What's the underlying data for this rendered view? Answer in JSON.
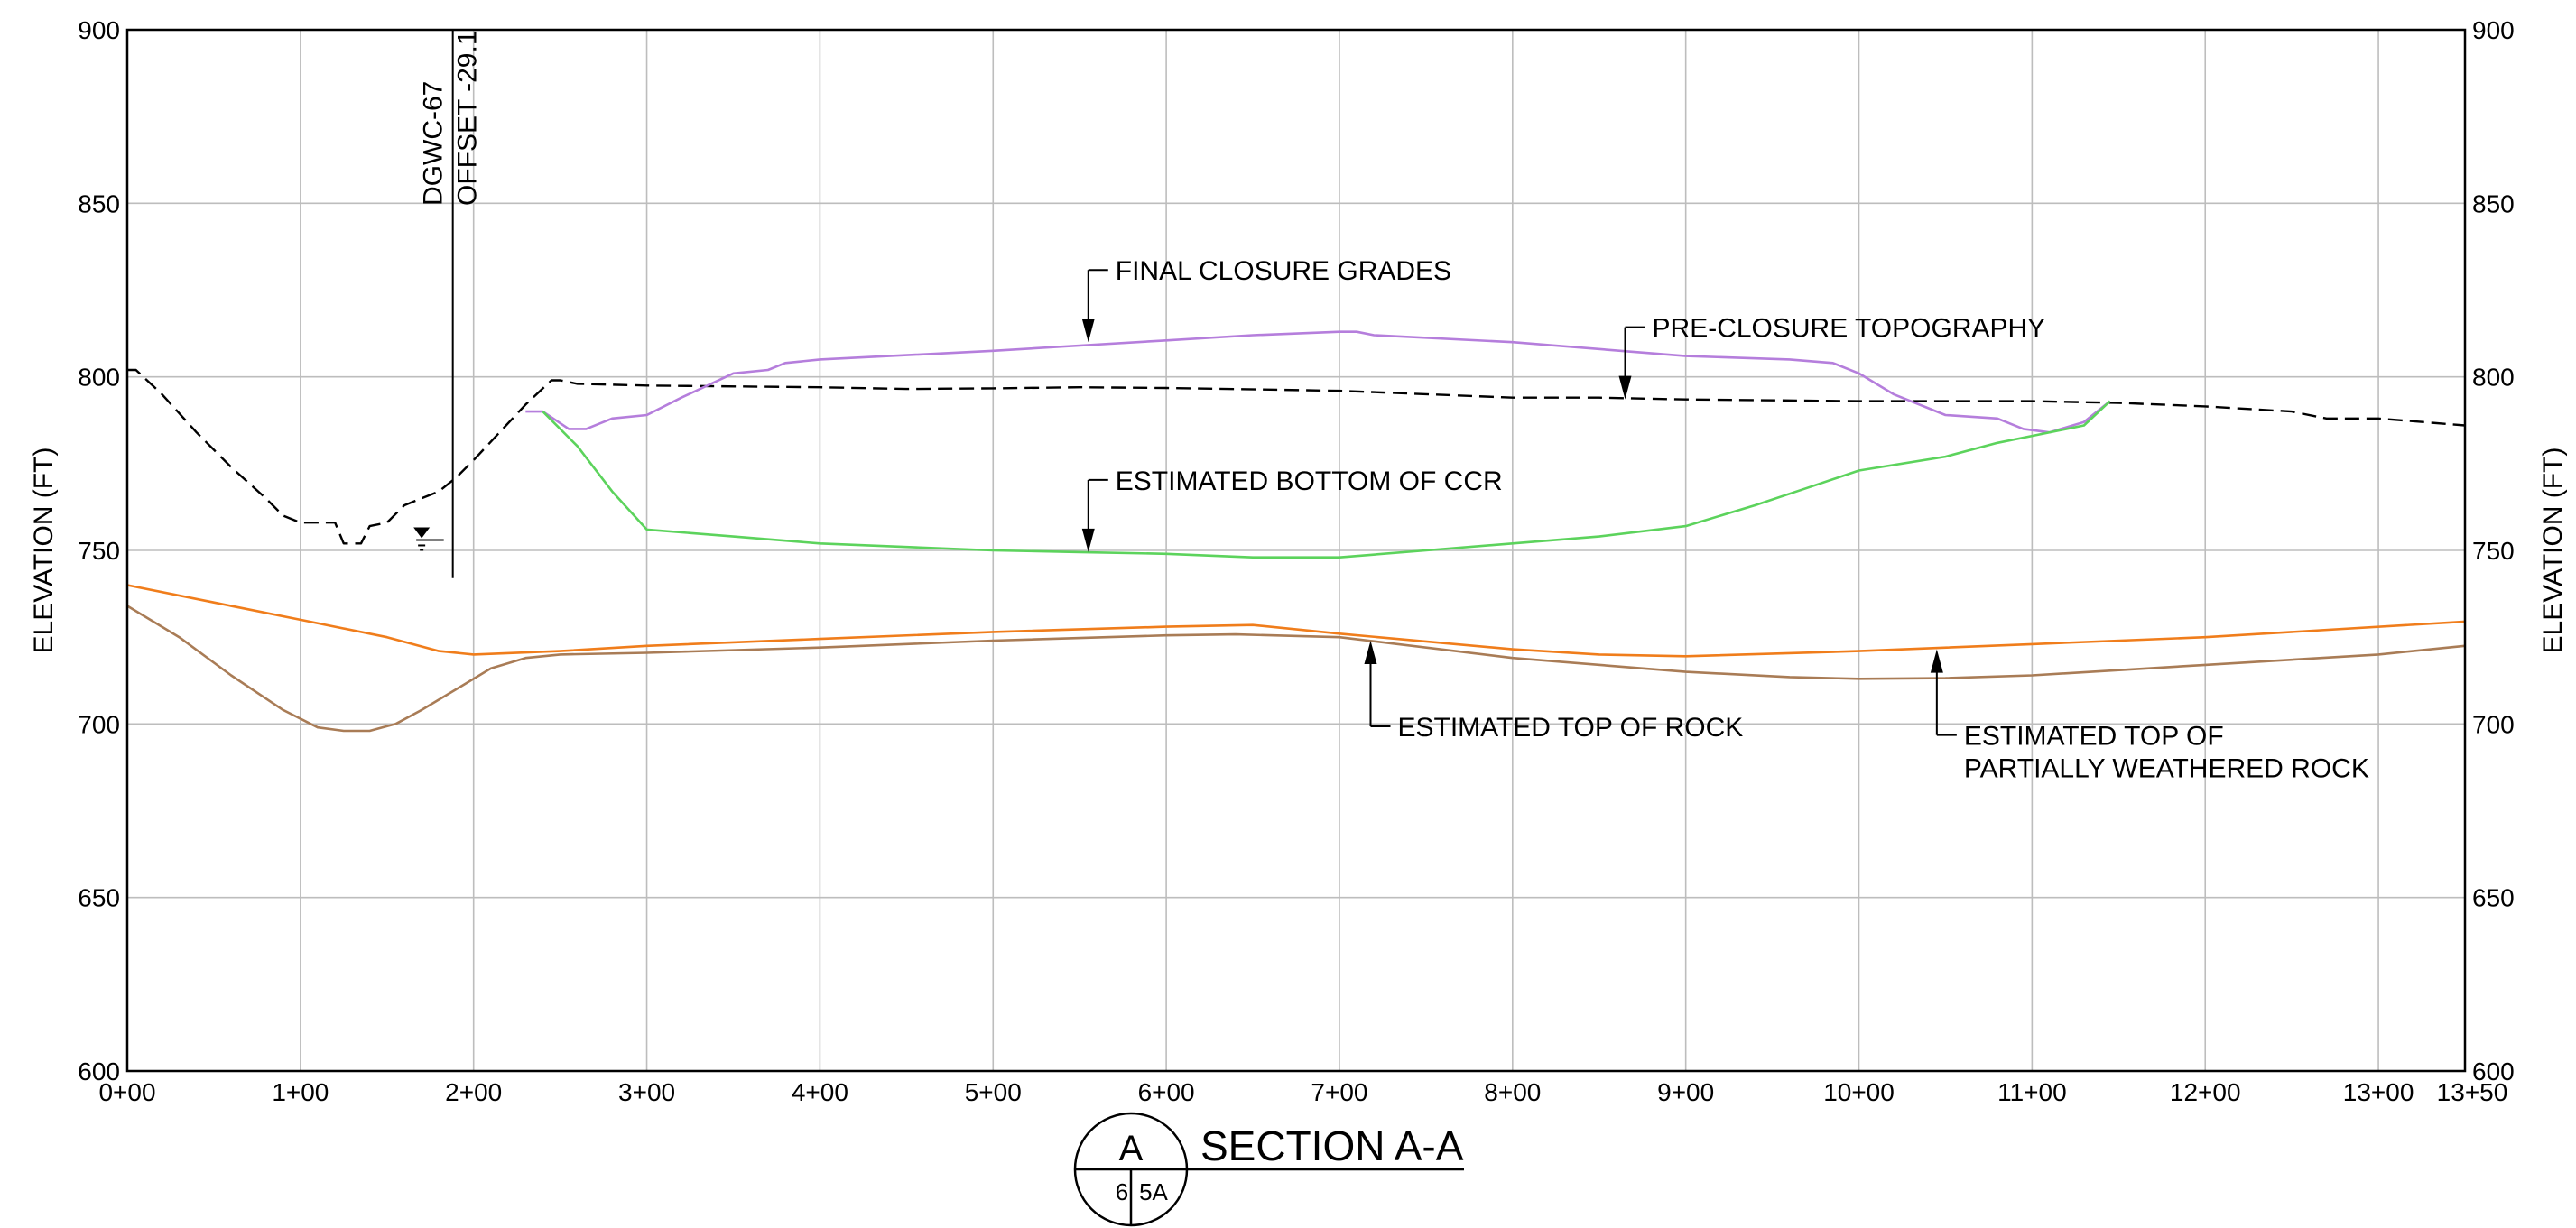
{
  "chart_data": {
    "type": "line",
    "ylabel_left": "ELEVATION (FT)",
    "ylabel_right": "ELEVATION (FT)",
    "xlim": [
      0,
      1350
    ],
    "ylim": [
      600,
      900
    ],
    "x_ticks": [
      {
        "v": 0,
        "label": "0+00"
      },
      {
        "v": 100,
        "label": "1+00"
      },
      {
        "v": 200,
        "label": "2+00"
      },
      {
        "v": 300,
        "label": "3+00"
      },
      {
        "v": 400,
        "label": "4+00"
      },
      {
        "v": 500,
        "label": "5+00"
      },
      {
        "v": 600,
        "label": "6+00"
      },
      {
        "v": 700,
        "label": "7+00"
      },
      {
        "v": 800,
        "label": "8+00"
      },
      {
        "v": 900,
        "label": "9+00"
      },
      {
        "v": 1000,
        "label": "10+00"
      },
      {
        "v": 1100,
        "label": "11+00"
      },
      {
        "v": 1200,
        "label": "12+00"
      },
      {
        "v": 1300,
        "label": "13+00"
      },
      {
        "v": 1350,
        "label": "13+50"
      }
    ],
    "y_ticks": [
      {
        "v": 600,
        "label": "600"
      },
      {
        "v": 650,
        "label": "650"
      },
      {
        "v": 700,
        "label": "700"
      },
      {
        "v": 750,
        "label": "750"
      },
      {
        "v": 800,
        "label": "800"
      },
      {
        "v": 850,
        "label": "850"
      },
      {
        "v": 900,
        "label": "900"
      }
    ],
    "grid": true,
    "series": [
      {
        "name": "PRE-CLOSURE TOPOGRAPHY",
        "color": "#000000",
        "dashed": true,
        "points": [
          [
            0,
            802
          ],
          [
            5,
            802
          ],
          [
            20,
            795
          ],
          [
            40,
            784
          ],
          [
            60,
            774
          ],
          [
            80,
            765
          ],
          [
            90,
            760
          ],
          [
            100,
            758
          ],
          [
            120,
            758
          ],
          [
            125,
            752
          ],
          [
            135,
            752
          ],
          [
            140,
            757
          ],
          [
            150,
            758
          ],
          [
            160,
            763
          ],
          [
            170,
            765
          ],
          [
            180,
            767
          ],
          [
            190,
            771
          ],
          [
            200,
            776
          ],
          [
            215,
            784
          ],
          [
            230,
            792
          ],
          [
            245,
            799
          ],
          [
            250,
            799
          ],
          [
            260,
            798
          ],
          [
            300,
            797.5
          ],
          [
            400,
            797
          ],
          [
            450,
            796.5
          ],
          [
            500,
            796.7
          ],
          [
            550,
            797
          ],
          [
            600,
            796.8
          ],
          [
            700,
            796
          ],
          [
            800,
            794
          ],
          [
            850,
            794
          ],
          [
            900,
            793.5
          ],
          [
            1000,
            793
          ],
          [
            1100,
            793
          ],
          [
            1150,
            792.5
          ],
          [
            1200,
            791.5
          ],
          [
            1250,
            790
          ],
          [
            1270,
            788
          ],
          [
            1300,
            788
          ],
          [
            1350,
            786
          ]
        ]
      },
      {
        "name": "FINAL CLOSURE GRADES",
        "color": "#b57edc",
        "dashed": false,
        "points": [
          [
            230,
            790
          ],
          [
            240,
            790
          ],
          [
            255,
            785
          ],
          [
            265,
            785
          ],
          [
            280,
            788
          ],
          [
            300,
            789
          ],
          [
            320,
            794
          ],
          [
            350,
            801
          ],
          [
            370,
            802
          ],
          [
            380,
            804
          ],
          [
            400,
            805
          ],
          [
            500,
            807.5
          ],
          [
            550,
            809
          ],
          [
            600,
            810.5
          ],
          [
            650,
            812
          ],
          [
            700,
            813
          ],
          [
            710,
            813
          ],
          [
            720,
            812
          ],
          [
            800,
            810
          ],
          [
            900,
            806
          ],
          [
            960,
            805
          ],
          [
            985,
            804
          ],
          [
            1000,
            801
          ],
          [
            1020,
            795
          ],
          [
            1050,
            789
          ],
          [
            1080,
            788
          ],
          [
            1095,
            785
          ],
          [
            1110,
            784
          ],
          [
            1130,
            787
          ],
          [
            1145,
            793
          ]
        ]
      },
      {
        "name": "ESTIMATED BOTTOM OF CCR",
        "color": "#5cd35c",
        "dashed": false,
        "points": [
          [
            240,
            790
          ],
          [
            260,
            780
          ],
          [
            280,
            767
          ],
          [
            300,
            756
          ],
          [
            350,
            754
          ],
          [
            400,
            752
          ],
          [
            500,
            750
          ],
          [
            550,
            749.5
          ],
          [
            600,
            749
          ],
          [
            650,
            748
          ],
          [
            700,
            748
          ],
          [
            750,
            750
          ],
          [
            800,
            752
          ],
          [
            850,
            754
          ],
          [
            900,
            757
          ],
          [
            940,
            763
          ],
          [
            970,
            768
          ],
          [
            1000,
            773
          ],
          [
            1050,
            777
          ],
          [
            1080,
            781
          ],
          [
            1100,
            783
          ],
          [
            1130,
            786
          ],
          [
            1145,
            793
          ]
        ]
      },
      {
        "name": "ESTIMATED TOP OF ROCK",
        "color": "#f07d1b",
        "dashed": false,
        "points": [
          [
            0,
            740
          ],
          [
            50,
            735
          ],
          [
            100,
            730
          ],
          [
            150,
            725
          ],
          [
            180,
            721
          ],
          [
            200,
            720
          ],
          [
            250,
            721
          ],
          [
            300,
            722.5
          ],
          [
            400,
            724.5
          ],
          [
            500,
            726.5
          ],
          [
            600,
            728
          ],
          [
            650,
            728.5
          ],
          [
            700,
            726
          ],
          [
            800,
            721.5
          ],
          [
            850,
            720
          ],
          [
            900,
            719.5
          ],
          [
            1000,
            721
          ],
          [
            1100,
            723
          ],
          [
            1200,
            725
          ],
          [
            1350,
            729.5
          ]
        ]
      },
      {
        "name": "ESTIMATED TOP OF PARTIALLY WEATHERED ROCK",
        "color": "#a97c56",
        "dashed": false,
        "points": [
          [
            0,
            734
          ],
          [
            30,
            725
          ],
          [
            60,
            714
          ],
          [
            90,
            704
          ],
          [
            110,
            699
          ],
          [
            125,
            698
          ],
          [
            140,
            698
          ],
          [
            155,
            700
          ],
          [
            170,
            704
          ],
          [
            190,
            710
          ],
          [
            210,
            716
          ],
          [
            230,
            719
          ],
          [
            250,
            720
          ],
          [
            300,
            720.5
          ],
          [
            400,
            722
          ],
          [
            500,
            724
          ],
          [
            600,
            725.5
          ],
          [
            640,
            725.8
          ],
          [
            700,
            725
          ],
          [
            800,
            719
          ],
          [
            900,
            715
          ],
          [
            960,
            713.5
          ],
          [
            1000,
            713
          ],
          [
            1050,
            713.2
          ],
          [
            1100,
            714
          ],
          [
            1200,
            717
          ],
          [
            1300,
            720
          ],
          [
            1350,
            722.5
          ]
        ]
      }
    ],
    "annotations": [
      {
        "text": "FINAL CLOSURE GRADES",
        "arrow_x": 555,
        "arrow_y": 810,
        "arrow_dir": "down"
      },
      {
        "text": "PRE-CLOSURE TOPOGRAPHY",
        "arrow_x": 865,
        "arrow_y": 793.5,
        "arrow_dir": "down"
      },
      {
        "text": "ESTIMATED BOTTOM OF CCR",
        "arrow_x": 555,
        "arrow_y": 749.5,
        "arrow_dir": "down"
      },
      {
        "text": "ESTIMATED TOP OF ROCK",
        "arrow_x": 718,
        "arrow_y": 724,
        "arrow_dir": "up"
      },
      {
        "text": [
          "ESTIMATED TOP OF",
          "PARTIALLY WEATHERED ROCK"
        ],
        "arrow_x": 1045,
        "arrow_y": 721.5,
        "arrow_dir": "up"
      }
    ],
    "boring": {
      "name": "DGWC-67",
      "offset_label": "OFFSET -29.1",
      "x": 188,
      "bottom": 742,
      "water_level_x": 170,
      "water_level": 753
    }
  },
  "section": {
    "title": "SECTION A-A",
    "letter": "A",
    "sheet_left": "6",
    "sheet_right": "5A"
  }
}
